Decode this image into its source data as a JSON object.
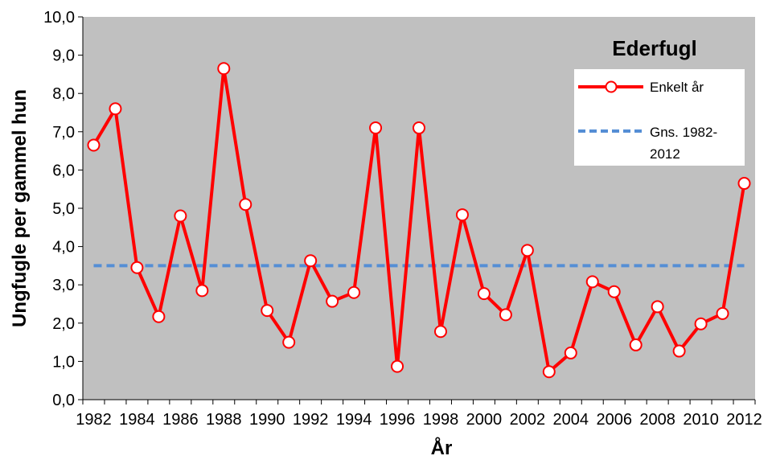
{
  "chart_data": {
    "type": "line",
    "title": "Ederfugl",
    "xlabel": "År",
    "ylabel": "Ungfugle per gammel hun",
    "ylim": [
      0,
      10
    ],
    "ytick_labels": [
      "0,0",
      "1,0",
      "2,0",
      "3,0",
      "4,0",
      "5,0",
      "6,0",
      "7,0",
      "8,0",
      "9,0",
      "10,0"
    ],
    "xtick_labels": [
      "1982",
      "1984",
      "1986",
      "1988",
      "1990",
      "1992",
      "1994",
      "1996",
      "1998",
      "2000",
      "2002",
      "2004",
      "2006",
      "2008",
      "2010",
      "2012"
    ],
    "x": [
      1982,
      1983,
      1984,
      1985,
      1986,
      1987,
      1988,
      1989,
      1990,
      1991,
      1992,
      1993,
      1994,
      1995,
      1996,
      1997,
      1998,
      1999,
      2000,
      2001,
      2002,
      2003,
      2004,
      2005,
      2006,
      2007,
      2008,
      2009,
      2010,
      2011,
      2012
    ],
    "series": [
      {
        "name": "Enkelt år",
        "color": "#ff0000",
        "values": [
          6.65,
          7.6,
          3.45,
          2.17,
          4.8,
          2.85,
          8.65,
          5.1,
          2.33,
          1.5,
          3.63,
          2.57,
          2.8,
          7.1,
          0.87,
          7.1,
          1.78,
          4.83,
          2.77,
          2.22,
          3.9,
          0.73,
          1.22,
          3.08,
          2.82,
          1.43,
          2.43,
          1.27,
          1.98,
          2.25,
          5.65
        ]
      },
      {
        "name": "Gns. 1982-2012",
        "color": "#558ed5",
        "values": [
          3.5,
          3.5,
          3.5,
          3.5,
          3.5,
          3.5,
          3.5,
          3.5,
          3.5,
          3.5,
          3.5,
          3.5,
          3.5,
          3.5,
          3.5,
          3.5,
          3.5,
          3.5,
          3.5,
          3.5,
          3.5,
          3.5,
          3.5,
          3.5,
          3.5,
          3.5,
          3.5,
          3.5,
          3.5,
          3.5,
          3.5
        ]
      }
    ],
    "legend": {
      "title": "Ederfugl",
      "entry1": "Enkelt år",
      "entry2_line1": "Gns. 1982-",
      "entry2_line2": "2012"
    },
    "plot_background": "#c0c0c0",
    "grid": false,
    "legend_position": "top-right"
  }
}
